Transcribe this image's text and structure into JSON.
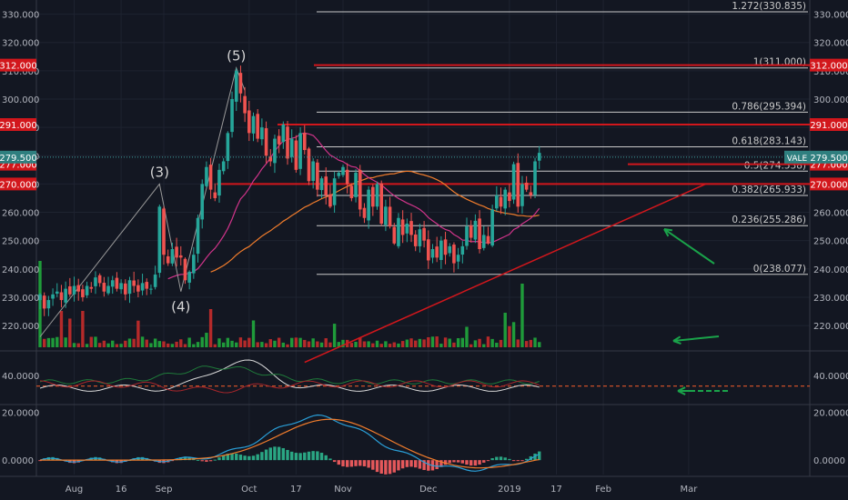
{
  "colors": {
    "background": "#131722",
    "grid": "#1e2330",
    "axis_text": "#b2b5be",
    "bull": "#26a69a",
    "bear": "#ef5350",
    "vol_bull": "#1f9b3a",
    "vol_bear": "#b52a2a",
    "red_line": "#d2171c",
    "fib_line": "#c9c9c9",
    "ma_fast": "#d0348a",
    "ma_slow": "#f07c2c",
    "price_tag": "#2f7f7f",
    "arrow": "#1aa34a",
    "rsi_white": "#d8d8d8",
    "rsi_green": "#1f7a3a",
    "rsi_red": "#a7262b",
    "macd_blue": "#2a9fd8",
    "macd_orange": "#f07c2c",
    "hist_green": "#2aa683",
    "hist_red": "#e5585b"
  },
  "chart_data": {
    "type": "candlestick",
    "symbol": "VALE",
    "last_price": 279.5,
    "last_price_label": "279.500",
    "x_ticks": [
      {
        "label": "Aug",
        "i": 8
      },
      {
        "label": "16",
        "i": 19
      },
      {
        "label": "Sep",
        "i": 29
      },
      {
        "label": "Oct",
        "i": 49
      },
      {
        "label": "17",
        "i": 60
      },
      {
        "label": "Nov",
        "i": 71
      },
      {
        "label": "Dec",
        "i": 91
      },
      {
        "label": "2019",
        "i": 110
      },
      {
        "label": "17",
        "i": 121
      },
      {
        "label": "Feb",
        "i": 132
      },
      {
        "label": "Mar",
        "i": 152
      }
    ],
    "price_axis": {
      "min": 212,
      "max": 335,
      "ticks": [
        "220.000",
        "230.000",
        "240.000",
        "250.000",
        "260.000",
        "270.000",
        "280.000",
        "290.000",
        "300.000",
        "310.000",
        "320.000",
        "330.000"
      ]
    },
    "red_levels": [
      {
        "value": 312,
        "label": "312.000"
      },
      {
        "value": 291,
        "label": "291.000"
      },
      {
        "value": 277,
        "label": "277.000"
      },
      {
        "value": 270,
        "label": "270.000"
      }
    ],
    "fib_levels": [
      {
        "value": 330.835,
        "label": "1.272(330.835)"
      },
      {
        "value": 311.0,
        "label": "1(311.000)"
      },
      {
        "value": 295.394,
        "label": "0.786(295.394)"
      },
      {
        "value": 283.143,
        "label": "0.618(283.143)"
      },
      {
        "value": 274.538,
        "label": "0.5(274.538)"
      },
      {
        "value": 265.933,
        "label": "0.382(265.933)"
      },
      {
        "value": 255.286,
        "label": "0.236(255.286)"
      },
      {
        "value": 238.077,
        "label": "0(238.077)"
      }
    ],
    "wave_labels": [
      {
        "label": "(3)",
        "i": 28,
        "price": 270
      },
      {
        "label": "(4)",
        "i": 33,
        "price": 232
      },
      {
        "label": "(5)",
        "i": 46,
        "price": 311
      }
    ],
    "wave_path": [
      [
        0,
        216
      ],
      [
        28,
        270
      ],
      [
        33,
        232
      ],
      [
        46,
        311
      ],
      [
        48,
        303
      ]
    ],
    "trendline": [
      [
        62,
        207
      ],
      [
        156,
        270
      ]
    ],
    "closes": [
      231,
      226,
      229,
      231,
      232,
      229,
      233,
      231,
      234,
      232,
      230,
      234,
      233,
      237,
      235,
      232,
      234,
      236,
      233,
      235,
      231,
      236,
      234,
      232,
      235,
      233,
      233,
      238,
      262,
      245,
      242,
      247,
      244,
      244,
      236,
      239,
      245,
      258,
      270,
      276,
      268,
      265,
      275,
      278,
      288,
      300,
      310,
      302,
      295,
      288,
      294,
      286,
      290,
      280,
      278,
      286,
      284,
      291,
      279,
      286,
      275,
      288,
      282,
      271,
      278,
      268,
      272,
      266,
      262,
      272,
      274,
      276,
      270,
      265,
      274,
      261,
      258,
      268,
      262,
      270,
      256,
      262,
      255,
      249,
      258,
      252,
      256,
      252,
      248,
      254,
      250,
      243,
      247,
      244,
      250,
      245,
      248,
      242,
      245,
      248,
      255,
      251,
      257,
      247,
      252,
      249,
      261,
      266,
      262,
      268,
      264,
      277,
      262,
      270,
      268,
      266,
      278,
      281
    ],
    "rsi": {
      "axis_labels": [
        "40.0000"
      ],
      "levels": [
        {
          "value": 30.0,
          "dashed": true
        }
      ],
      "min": 15,
      "max": 60
    },
    "macd": {
      "axis_labels": [
        "20.0000",
        "0.0000"
      ],
      "min": -6,
      "max": 22
    }
  }
}
